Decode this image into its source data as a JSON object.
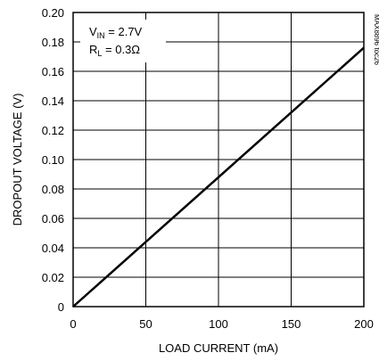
{
  "chart_data": {
    "type": "line",
    "xlabel": "LOAD CURRENT (mA)",
    "ylabel": "DROPOUT VOLTAGE (V)",
    "xlim": [
      0,
      200
    ],
    "ylim": [
      0,
      0.2
    ],
    "x_ticks": [
      "0",
      "50",
      "100",
      "150",
      "200"
    ],
    "y_ticks": [
      "0",
      "0.02",
      "0.04",
      "0.06",
      "0.08",
      "0.10",
      "0.12",
      "0.14",
      "0.16",
      "0.18",
      "0.20"
    ],
    "grid": true,
    "series": [
      {
        "x": [
          0,
          200
        ],
        "y": [
          0,
          0.176
        ]
      }
    ],
    "annotations": {
      "vin_symbol": "V",
      "vin_sub": "IN",
      "vin_value": " = 2.7V",
      "rl_symbol": "R",
      "rl_sub": "L",
      "rl_value": " = 0.3Ω"
    },
    "side_id": "MAX8896 toc26"
  }
}
